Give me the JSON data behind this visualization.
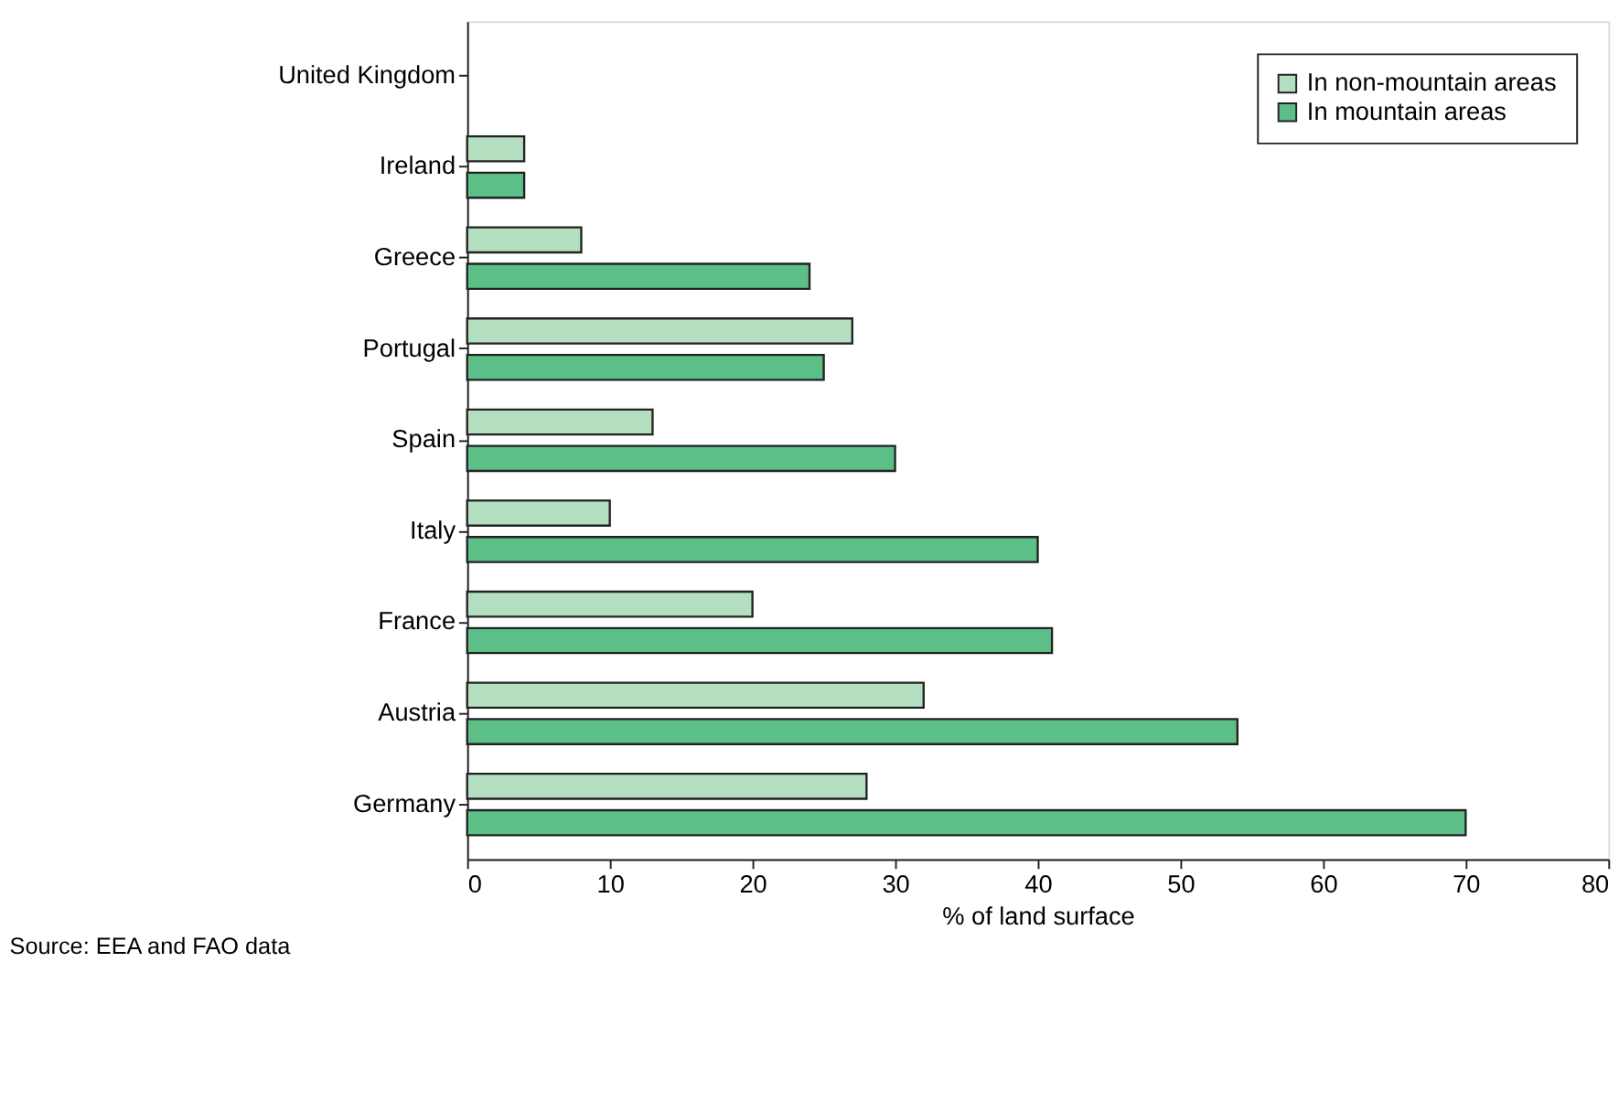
{
  "chart_data": {
    "type": "bar",
    "orientation": "horizontal",
    "xlabel": "% of land surface",
    "categories": [
      "United Kingdom",
      "Ireland",
      "Greece",
      "Portugal",
      "Spain",
      "Italy",
      "France",
      "Austria",
      "Germany"
    ],
    "series": [
      {
        "name": "In non-mountain areas",
        "color": "#b3dfc0",
        "values": [
          null,
          4,
          8,
          27,
          13,
          10,
          20,
          32,
          28
        ]
      },
      {
        "name": "In mountain areas",
        "color": "#5cbf87",
        "values": [
          null,
          4,
          24,
          25,
          30,
          40,
          41,
          54,
          70
        ]
      }
    ],
    "xlim": [
      0,
      80
    ],
    "xticks": [
      0,
      10,
      20,
      30,
      40,
      50,
      60,
      70,
      80
    ],
    "grid": false,
    "legend": "top right",
    "annotations": [
      "Source: EEA and FAO data"
    ]
  }
}
